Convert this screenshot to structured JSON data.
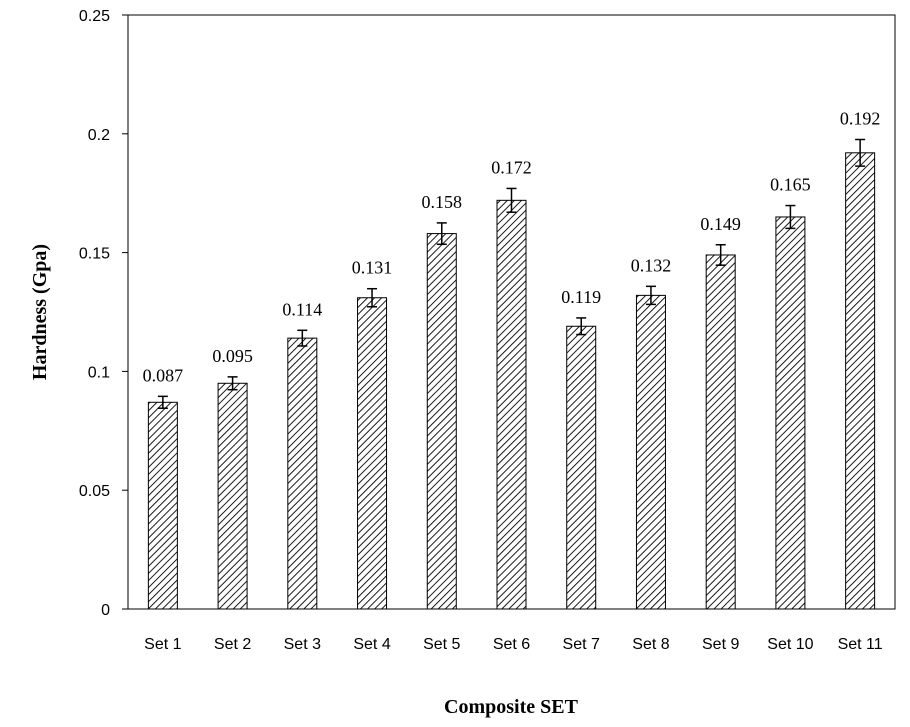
{
  "chart_data": {
    "type": "bar",
    "categories": [
      "Set 1",
      "Set 2",
      "Set 3",
      "Set 4",
      "Set 5",
      "Set 6",
      "Set 7",
      "Set 8",
      "Set 9",
      "Set 10",
      "Set 11"
    ],
    "values": [
      0.087,
      0.095,
      0.114,
      0.131,
      0.158,
      0.172,
      0.119,
      0.132,
      0.149,
      0.165,
      0.192
    ],
    "data_labels": [
      "0.087",
      "0.095",
      "0.114",
      "0.131",
      "0.158",
      "0.172",
      "0.119",
      "0.132",
      "0.149",
      "0.165",
      "0.192"
    ],
    "error": [
      0.0025,
      0.0027,
      0.0033,
      0.0038,
      0.0045,
      0.005,
      0.0035,
      0.0038,
      0.0043,
      0.0048,
      0.0056
    ],
    "xlabel": "Composite SET",
    "ylabel": "Hardness (Gpa)",
    "ylim": [
      0,
      0.25
    ],
    "yticks": [
      "0",
      "0.05",
      "0.1",
      "0.15",
      "0.2",
      "0.25"
    ],
    "ytick_values": [
      0,
      0.05,
      0.1,
      0.15,
      0.2,
      0.25
    ],
    "grid": false,
    "legend": "none",
    "bar_fill": "diagonal-hatch",
    "colors": {
      "bar_stroke": "#000000",
      "hatch": "#000000",
      "axis": "#000000",
      "background": "#ffffff"
    }
  }
}
